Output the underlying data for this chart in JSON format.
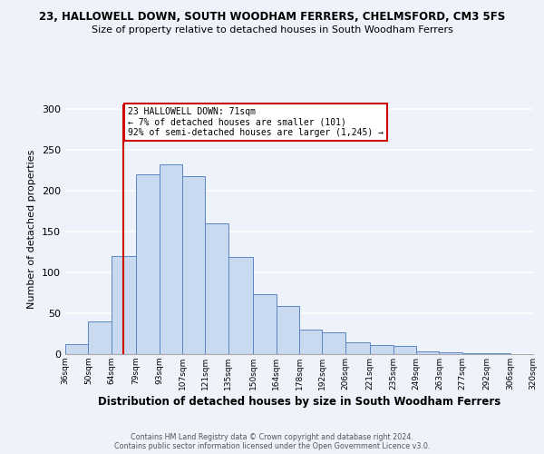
{
  "title1": "23, HALLOWELL DOWN, SOUTH WOODHAM FERRERS, CHELMSFORD, CM3 5FS",
  "title2": "Size of property relative to detached houses in South Woodham Ferrers",
  "xlabel": "Distribution of detached houses by size in South Woodham Ferrers",
  "ylabel": "Number of detached properties",
  "bin_labels": [
    "36sqm",
    "50sqm",
    "64sqm",
    "79sqm",
    "93sqm",
    "107sqm",
    "121sqm",
    "135sqm",
    "150sqm",
    "164sqm",
    "178sqm",
    "192sqm",
    "206sqm",
    "221sqm",
    "235sqm",
    "249sqm",
    "263sqm",
    "277sqm",
    "292sqm",
    "306sqm",
    "320sqm"
  ],
  "bar_values": [
    12,
    40,
    120,
    220,
    232,
    217,
    160,
    119,
    73,
    59,
    30,
    27,
    14,
    11,
    10,
    3,
    2,
    1,
    1,
    0
  ],
  "bin_edges": [
    36,
    50,
    64,
    79,
    93,
    107,
    121,
    135,
    150,
    164,
    178,
    192,
    206,
    221,
    235,
    249,
    263,
    277,
    292,
    306,
    320
  ],
  "bar_facecolor": "#c9d9f0",
  "bar_edgecolor": "#5b87c5",
  "vline_x": 71,
  "vline_color": "#cc0000",
  "annotation_text": "23 HALLOWELL DOWN: 71sqm\n← 7% of detached houses are smaller (101)\n92% of semi-detached houses are larger (1,245) →",
  "annotation_box_edgecolor": "#cc0000",
  "annotation_box_facecolor": "#ffffff",
  "ylim": [
    0,
    305
  ],
  "yticks": [
    0,
    50,
    100,
    150,
    200,
    250,
    300
  ],
  "background_color": "#eef2fb",
  "grid_color": "#ffffff",
  "footer1": "Contains HM Land Registry data © Crown copyright and database right 2024.",
  "footer2": "Contains public sector information licensed under the Open Government Licence v3.0."
}
